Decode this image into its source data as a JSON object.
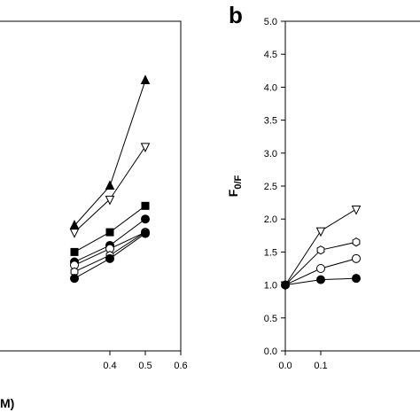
{
  "figure": {
    "panel_b_letter": "b"
  },
  "chart_data": [
    {
      "panel": "left (cropped)",
      "type": "line",
      "xlabel_fragment": "M)",
      "xlim": [
        0.0,
        0.6
      ],
      "ylim": [
        0.0,
        5.0
      ],
      "x_ticks": [
        "0.4",
        "0.5",
        "0.6"
      ],
      "x": [
        0.3,
        0.4,
        0.5
      ],
      "series": [
        {
          "marker": "triangle-filled",
          "values": [
            1.9,
            2.5,
            4.1
          ]
        },
        {
          "marker": "triangle-down-open",
          "values": [
            1.8,
            2.3,
            3.1
          ]
        },
        {
          "marker": "square-filled",
          "values": [
            1.5,
            1.8,
            2.2
          ]
        },
        {
          "marker": "circle-filled",
          "values": [
            1.35,
            1.6,
            2.0
          ]
        },
        {
          "marker": "circle-open",
          "values": [
            1.3,
            1.55,
            1.8
          ]
        },
        {
          "marker": "hexagon-open",
          "values": [
            1.2,
            1.45,
            1.8
          ]
        },
        {
          "marker": "circle-filled-2",
          "values": [
            1.1,
            1.4,
            1.78
          ]
        }
      ]
    },
    {
      "panel": "b",
      "type": "line",
      "ylabel": "F0/F",
      "ylabel_main": "F",
      "ylabel_sub": "0/F",
      "xlim": [
        0.0,
        0.6
      ],
      "ylim": [
        0.0,
        5.0
      ],
      "x_ticks": [
        "0.0",
        "0.1"
      ],
      "y_ticks": [
        "0.0",
        "0.5",
        "1.0",
        "1.5",
        "2.0",
        "2.5",
        "3.0",
        "3.5",
        "4.0",
        "4.5",
        "5.0"
      ],
      "x": [
        0.0,
        0.1,
        0.2
      ],
      "series": [
        {
          "marker": "triangle-down-open",
          "values": [
            1.0,
            1.82,
            2.15
          ]
        },
        {
          "marker": "hexagon-open",
          "values": [
            1.0,
            1.53,
            1.65
          ]
        },
        {
          "marker": "circle-open",
          "values": [
            1.0,
            1.25,
            1.4
          ]
        },
        {
          "marker": "circle-filled",
          "values": [
            1.0,
            1.08,
            1.1
          ]
        }
      ]
    }
  ]
}
